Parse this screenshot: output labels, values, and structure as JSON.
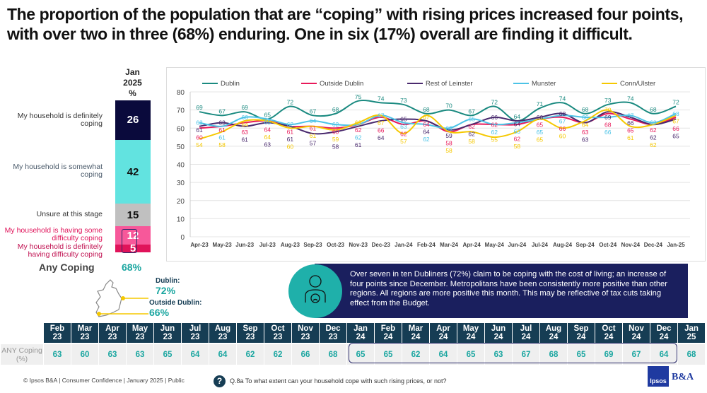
{
  "title": "The proportion of the population that are “coping” with rising prices increased four points, with over two in three (68%) enduring. One in six (17%) overall are finding it difficult.",
  "stack": {
    "header": [
      "Jan",
      "2025",
      "%"
    ],
    "segments": [
      {
        "label": "My household is definitely coping",
        "value": 26,
        "color": "#0a0a3c",
        "text_color": "#ffffff",
        "label_color": "#333333"
      },
      {
        "label": "My household is somewhat coping",
        "value": 42,
        "color": "#62e3e0",
        "text_color": "#111111",
        "label_color": "#4a5a6a"
      },
      {
        "label": "Unsure at this stage",
        "value": 15,
        "color": "#c0c0c0",
        "text_color": "#111111",
        "label_color": "#333333"
      },
      {
        "label": "My household is having some difficulty coping",
        "value": 12,
        "color": "#f7589a",
        "text_color": "#ffffff",
        "label_color": "#e0135a"
      },
      {
        "label": "My household is definitely having difficulty coping",
        "value": 5,
        "color": "#e0135a",
        "text_color": "#ffffff",
        "label_color": "#c01050"
      }
    ],
    "any_label": "Any Coping",
    "any_value": "68%"
  },
  "map": {
    "dublin_label": "Dublin:",
    "dublin_value": "72%",
    "outside_label": "Outside Dublin:",
    "outside_value": "66%"
  },
  "callout": {
    "icon": "person-sad-face-icon",
    "text": "Over seven in ten Dubliners (72%) claim to be coping with the cost of living; an increase of four points since December. Metropolitans have been consistently more positive than other regions. All regions are more positive this month. This may be reflective of tax cuts taking effect from the Budget."
  },
  "chart_data": {
    "type": "line",
    "x": [
      "Apr-23",
      "May-23",
      "Jun-23",
      "Jul-23",
      "Aug-23",
      "Sep-23",
      "Oct-23",
      "Nov-23",
      "Dec-23",
      "Jan-24",
      "Feb-24",
      "Mar-24",
      "Apr-24",
      "May-24",
      "Jun-24",
      "Jul-24",
      "Aug-24",
      "Sep-24",
      "Oct-24",
      "Nov-24",
      "Dec-24",
      "Jan-25"
    ],
    "ylim": [
      0,
      80
    ],
    "yticks": [
      0,
      10,
      20,
      30,
      40,
      50,
      60,
      70,
      80
    ],
    "grid": true,
    "legend": "top",
    "series": [
      {
        "name": "Dublin",
        "color": "#1a8a80",
        "values": [
          69,
          67,
          69,
          65,
          72,
          67,
          68,
          75,
          74,
          73,
          68,
          70,
          67,
          72,
          64,
          71,
          74,
          68,
          73,
          74,
          68,
          72
        ]
      },
      {
        "name": "Outside Dublin",
        "color": "#e8195a",
        "values": [
          60,
          61,
          63,
          64,
          61,
          61,
          60,
          62,
          66,
          62,
          64,
          58,
          62,
          62,
          62,
          65,
          66,
          63,
          68,
          65,
          62,
          66
        ]
      },
      {
        "name": "Rest of Leinster",
        "color": "#4a2a6e",
        "values": [
          61,
          63,
          61,
          63,
          61,
          57,
          58,
          61,
          64,
          65,
          64,
          59,
          62,
          66,
          64,
          66,
          68,
          63,
          69,
          66,
          62,
          65
        ]
      },
      {
        "name": "Munster",
        "color": "#4cc3e6",
        "values": [
          63,
          61,
          66,
          65,
          62,
          64,
          62,
          62,
          67,
          63,
          62,
          60,
          65,
          62,
          63,
          65,
          67,
          66,
          66,
          67,
          63,
          68
        ]
      },
      {
        "name": "Conn/Ulster",
        "color": "#f5c800",
        "values": [
          54,
          58,
          64,
          64,
          60,
          61,
          59,
          63,
          67,
          57,
          67,
          58,
          58,
          55,
          58,
          65,
          60,
          64,
          70,
          61,
          62,
          67
        ]
      }
    ]
  },
  "table": {
    "row_label": "ANY Coping (%)",
    "months": [
      [
        "Feb",
        "23"
      ],
      [
        "Mar",
        "23"
      ],
      [
        "Apr",
        "23"
      ],
      [
        "May",
        "23"
      ],
      [
        "Jun",
        "23"
      ],
      [
        "Jul",
        "23"
      ],
      [
        "Aug",
        "23"
      ],
      [
        "Sep",
        "23"
      ],
      [
        "Oct",
        "23"
      ],
      [
        "Nov",
        "23"
      ],
      [
        "Dec",
        "23"
      ],
      [
        "Jan",
        "24"
      ],
      [
        "Feb",
        "24"
      ],
      [
        "Mar",
        "24"
      ],
      [
        "Apr",
        "24"
      ],
      [
        "May",
        "24"
      ],
      [
        "Jun",
        "24"
      ],
      [
        "Jul",
        "24"
      ],
      [
        "Aug",
        "24"
      ],
      [
        "Sep",
        "24"
      ],
      [
        "Oct",
        "24"
      ],
      [
        "Nov",
        "24"
      ],
      [
        "Dec",
        "24"
      ],
      [
        "Jan",
        "25"
      ]
    ],
    "values": [
      "63",
      "60",
      "63",
      "63",
      "65",
      "64",
      "64",
      "62",
      "62",
      "66",
      "68",
      "65",
      "65",
      "62",
      "64",
      "65",
      "63",
      "67",
      "68",
      "65",
      "69",
      "67",
      "64",
      "68"
    ]
  },
  "footer": "© Ipsos B&A | Consumer Confidence | January 2025 |  Public",
  "question": "Q.8a To what extent can your household cope with such rising prices, or not?",
  "logo": {
    "ipsos": "Ipsos",
    "ba": "B&A"
  }
}
